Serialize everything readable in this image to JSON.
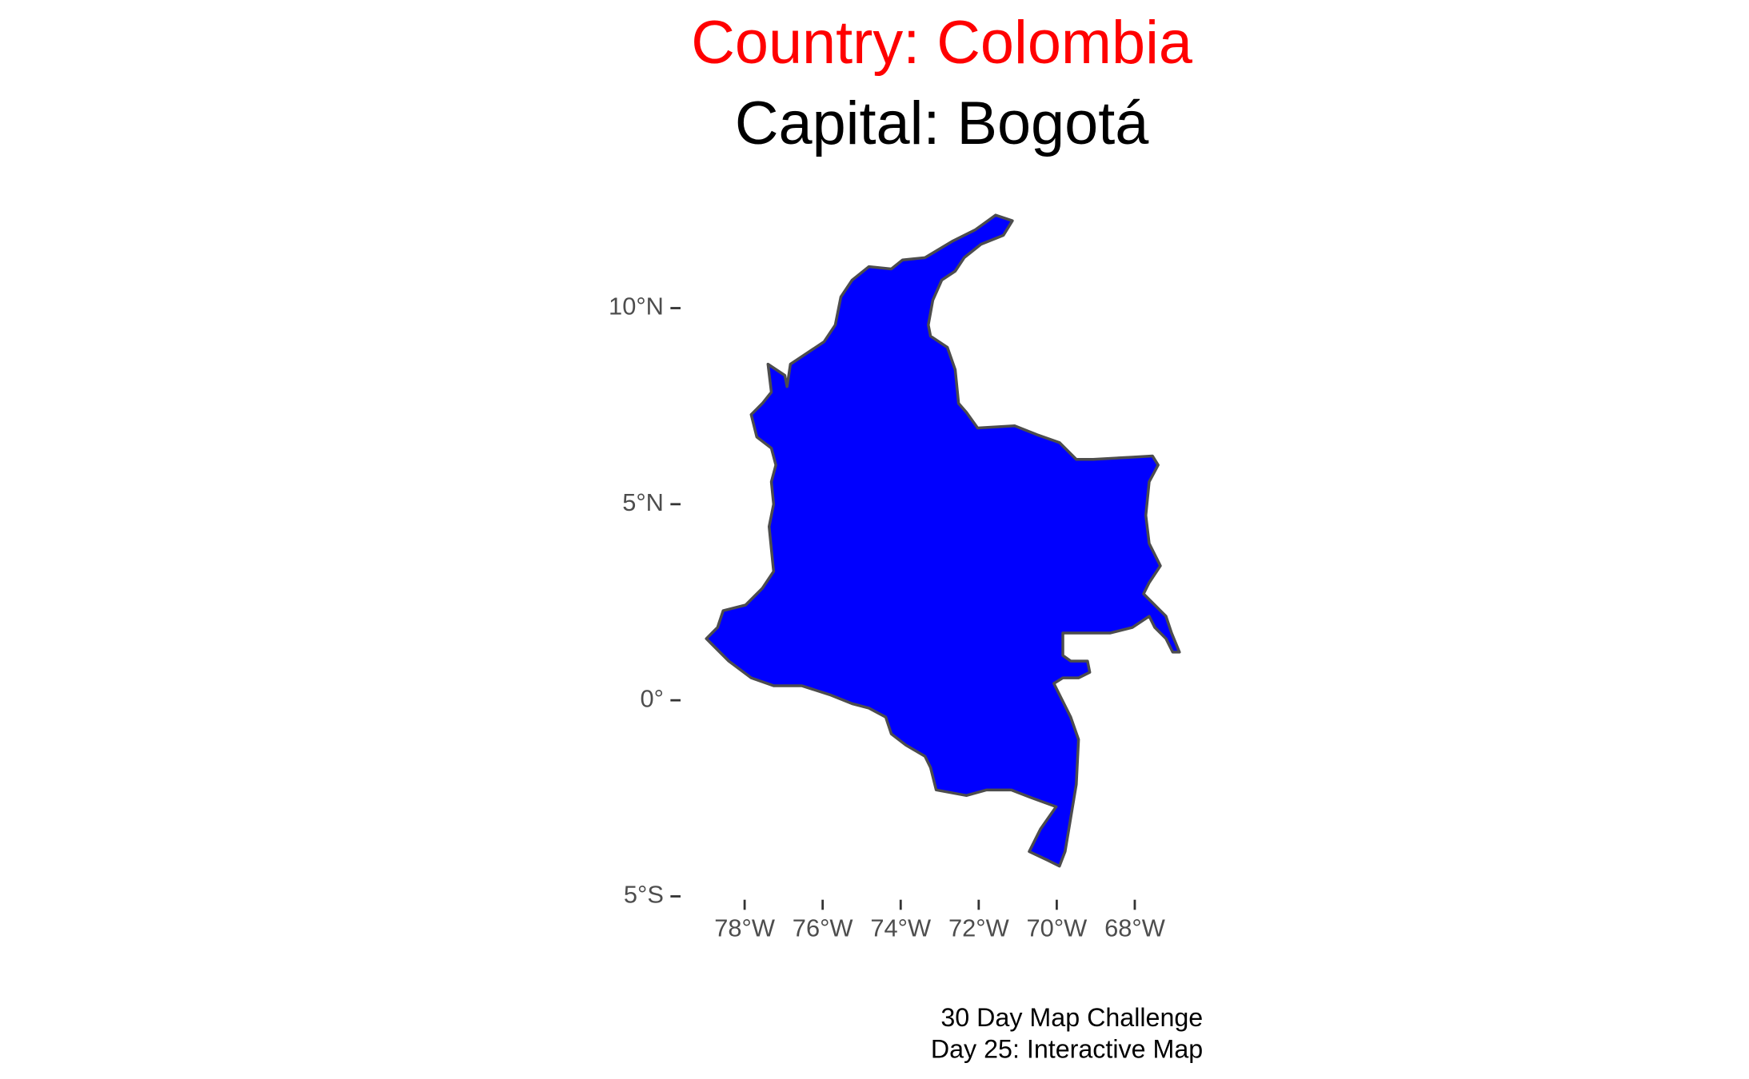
{
  "chart_data": {
    "type": "map",
    "title": "Country: Colombia",
    "subtitle": "Capital: Bogotá",
    "caption": [
      "30 Day Map Challenge",
      "Day 25: Interactive Map"
    ],
    "title_color": "#ff0000",
    "fill": "#0000ff",
    "outline": "#4d4d4d",
    "xlim": [
      -79.7,
      -66.7
    ],
    "ylim": [
      -5.3,
      12.7
    ],
    "xticks": [
      {
        "value": -78,
        "label": "78°W"
      },
      {
        "value": -76,
        "label": "76°W"
      },
      {
        "value": -74,
        "label": "74°W"
      },
      {
        "value": -72,
        "label": "72°W"
      },
      {
        "value": -70,
        "label": "70°W"
      },
      {
        "value": -68,
        "label": "68°W"
      }
    ],
    "yticks": [
      {
        "value": 10,
        "label": "10°N"
      },
      {
        "value": 5,
        "label": "5°N"
      },
      {
        "value": 0,
        "label": "0°"
      },
      {
        "value": -5,
        "label": "5°S"
      }
    ]
  }
}
